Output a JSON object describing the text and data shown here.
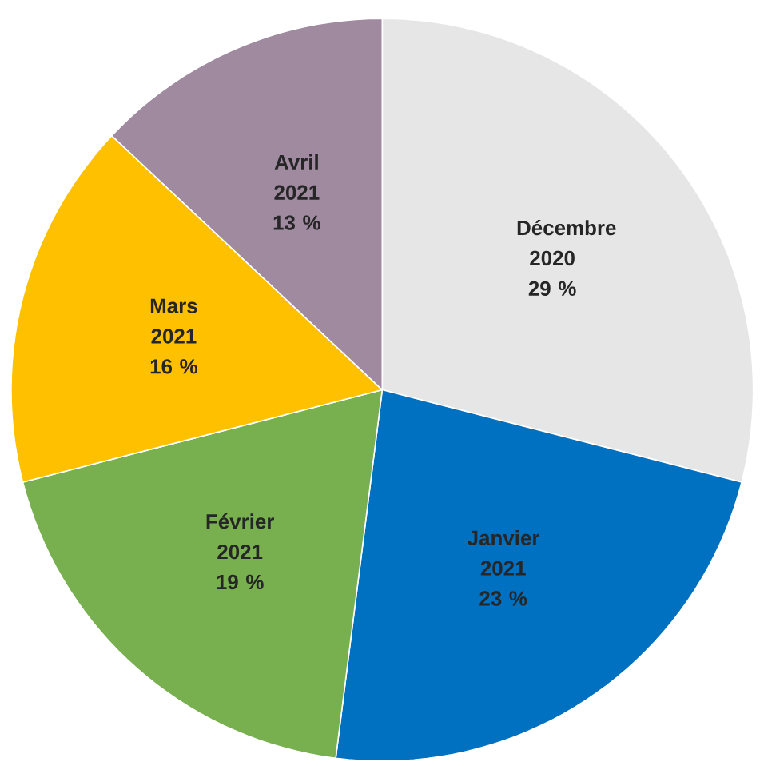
{
  "chart_data": {
    "type": "pie",
    "categories": [
      "Décembre 2020",
      "Janvier 2021",
      "Février 2021",
      "Mars 2021",
      "Avril 2021"
    ],
    "values": [
      29,
      23,
      19,
      16,
      13
    ],
    "colors": [
      "#e6e6e6",
      "#0070c0",
      "#78b04f",
      "#ffc000",
      "#9f8aa0"
    ],
    "value_labels": [
      "29 %",
      "23 %",
      "19 %",
      "16 %",
      "13 %"
    ]
  }
}
